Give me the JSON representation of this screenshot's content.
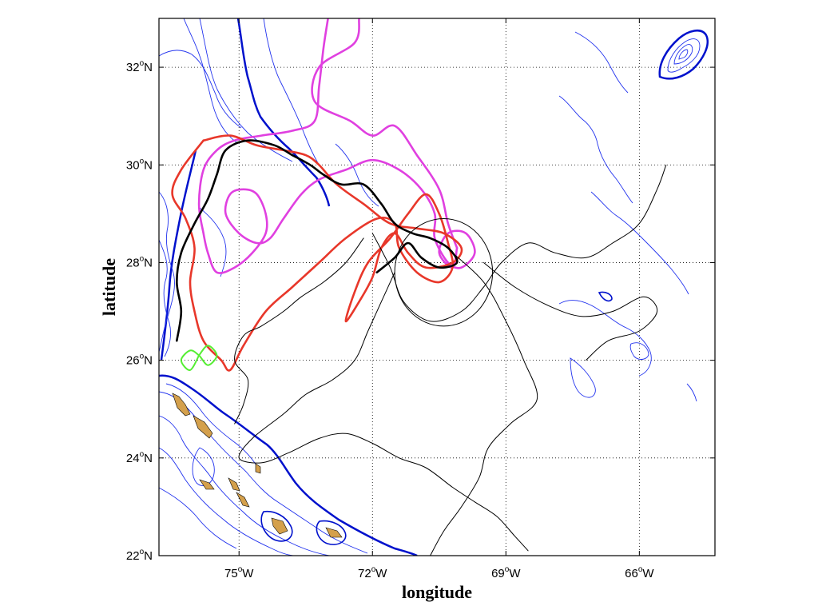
{
  "axes": {
    "xlabel": "longitude",
    "ylabel": "latitude",
    "xlim": [
      -76.8,
      -64.3
    ],
    "ylim": [
      22,
      33
    ],
    "xticks": [
      {
        "value": -75,
        "num": "75",
        "dir": "W"
      },
      {
        "value": -72,
        "num": "72",
        "dir": "W"
      },
      {
        "value": -69,
        "num": "69",
        "dir": "W"
      },
      {
        "value": -66,
        "num": "66",
        "dir": "W"
      }
    ],
    "yticks": [
      {
        "value": 22,
        "num": "22",
        "dir": "N"
      },
      {
        "value": 24,
        "num": "24",
        "dir": "N"
      },
      {
        "value": 26,
        "num": "26",
        "dir": "N"
      },
      {
        "value": 28,
        "num": "28",
        "dir": "N"
      },
      {
        "value": 30,
        "num": "30",
        "dir": "N"
      },
      {
        "value": 32,
        "num": "32",
        "dir": "N"
      }
    ],
    "degree_symbol": "o",
    "grid": true
  },
  "colors": {
    "bathymetry_thin": "#2233ee",
    "bathymetry_thick": "#0011cc",
    "land": "#d4a04c",
    "track_magenta": "#e040e0",
    "track_red": "#e8372a",
    "track_black": "#000000",
    "track_green": "#55ee33"
  },
  "chart_data": {
    "type": "map",
    "layers": [
      {
        "kind": "drifter-track",
        "color": "magenta",
        "points": [
          [
            -73.0,
            33.0
          ],
          [
            -73.1,
            32.4
          ],
          [
            -73.2,
            31.6
          ],
          [
            -73.3,
            30.9
          ],
          [
            -73.8,
            30.7
          ],
          [
            -74.5,
            30.6
          ],
          [
            -75.1,
            30.5
          ],
          [
            -75.5,
            30.3
          ],
          [
            -75.8,
            29.9
          ],
          [
            -75.9,
            29.2
          ],
          [
            -75.8,
            28.6
          ],
          [
            -75.7,
            28.2
          ],
          [
            -75.5,
            27.8
          ],
          [
            -75.1,
            27.9
          ],
          [
            -74.7,
            28.2
          ],
          [
            -74.4,
            28.6
          ],
          [
            -74.4,
            29.0
          ],
          [
            -74.6,
            29.4
          ],
          [
            -74.9,
            29.5
          ],
          [
            -75.2,
            29.4
          ],
          [
            -75.3,
            29.0
          ],
          [
            -75.0,
            28.6
          ],
          [
            -74.6,
            28.4
          ],
          [
            -74.3,
            28.5
          ],
          [
            -74.0,
            28.9
          ],
          [
            -73.6,
            29.4
          ],
          [
            -73.2,
            29.7
          ],
          [
            -72.6,
            29.9
          ],
          [
            -72.0,
            30.1
          ],
          [
            -71.4,
            29.9
          ],
          [
            -70.9,
            29.5
          ],
          [
            -70.6,
            29.0
          ],
          [
            -70.6,
            28.5
          ],
          [
            -70.3,
            28.0
          ],
          [
            -70.0,
            27.9
          ],
          [
            -69.7,
            28.2
          ],
          [
            -69.9,
            28.6
          ],
          [
            -70.3,
            28.6
          ],
          [
            -70.5,
            28.2
          ],
          [
            -70.2,
            27.9
          ],
          [
            -70.1,
            28.3
          ]
        ]
      },
      {
        "kind": "drifter-track",
        "color": "magenta",
        "points": [
          [
            -72.3,
            33.0
          ],
          [
            -72.4,
            32.5
          ],
          [
            -73.2,
            32.0
          ],
          [
            -73.3,
            31.3
          ],
          [
            -72.5,
            30.9
          ],
          [
            -72.0,
            30.6
          ],
          [
            -71.5,
            30.8
          ],
          [
            -71.0,
            30.2
          ],
          [
            -70.5,
            29.5
          ],
          [
            -70.3,
            28.8
          ],
          [
            -70.1,
            28.3
          ]
        ]
      },
      {
        "kind": "drifter-track",
        "color": "red",
        "points": [
          [
            -75.8,
            30.5
          ],
          [
            -75.2,
            30.6
          ],
          [
            -74.6,
            30.4
          ],
          [
            -74.0,
            30.3
          ],
          [
            -73.5,
            30.2
          ],
          [
            -73.2,
            30.0
          ],
          [
            -72.8,
            29.6
          ],
          [
            -72.2,
            29.2
          ],
          [
            -71.6,
            28.8
          ],
          [
            -71.0,
            28.7
          ],
          [
            -70.4,
            28.6
          ],
          [
            -70.0,
            28.3
          ],
          [
            -70.2,
            28.0
          ],
          [
            -70.8,
            27.9
          ],
          [
            -71.2,
            28.2
          ],
          [
            -71.5,
            28.6
          ],
          [
            -71.8,
            28.3
          ],
          [
            -72.0,
            27.7
          ],
          [
            -72.3,
            27.2
          ],
          [
            -72.6,
            26.8
          ],
          [
            -72.4,
            27.4
          ],
          [
            -72.1,
            28.0
          ],
          [
            -71.6,
            28.5
          ],
          [
            -71.2,
            29.0
          ],
          [
            -70.8,
            29.4
          ],
          [
            -70.5,
            29.0
          ],
          [
            -70.3,
            28.4
          ],
          [
            -70.2,
            27.9
          ],
          [
            -70.5,
            27.6
          ],
          [
            -71.0,
            27.8
          ],
          [
            -71.4,
            28.3
          ],
          [
            -71.5,
            28.8
          ],
          [
            -71.9,
            28.9
          ],
          [
            -72.6,
            28.5
          ],
          [
            -73.2,
            28.0
          ],
          [
            -73.8,
            27.5
          ],
          [
            -74.4,
            27.0
          ],
          [
            -74.9,
            26.3
          ],
          [
            -75.2,
            25.8
          ],
          [
            -75.4,
            26.0
          ],
          [
            -75.8,
            26.4
          ],
          [
            -76.0,
            27.0
          ],
          [
            -76.1,
            27.6
          ],
          [
            -76.0,
            28.3
          ],
          [
            -76.2,
            28.9
          ],
          [
            -76.5,
            29.4
          ],
          [
            -76.3,
            29.9
          ],
          [
            -75.8,
            30.5
          ]
        ]
      },
      {
        "kind": "drifter-track",
        "color": "black-thick",
        "points": [
          [
            -76.4,
            26.4
          ],
          [
            -76.3,
            27.0
          ],
          [
            -76.4,
            27.6
          ],
          [
            -76.3,
            28.2
          ],
          [
            -76.0,
            28.8
          ],
          [
            -75.7,
            29.3
          ],
          [
            -75.5,
            29.8
          ],
          [
            -75.3,
            30.3
          ],
          [
            -74.8,
            30.5
          ],
          [
            -74.2,
            30.4
          ],
          [
            -73.8,
            30.2
          ],
          [
            -73.4,
            30.0
          ],
          [
            -73.1,
            29.8
          ],
          [
            -72.7,
            29.6
          ],
          [
            -72.2,
            29.6
          ],
          [
            -71.8,
            29.2
          ],
          [
            -71.5,
            28.8
          ],
          [
            -71.1,
            28.6
          ],
          [
            -70.7,
            28.5
          ],
          [
            -70.3,
            28.3
          ],
          [
            -70.1,
            28.0
          ],
          [
            -70.5,
            27.9
          ],
          [
            -70.9,
            28.1
          ],
          [
            -71.2,
            28.4
          ],
          [
            -71.5,
            28.1
          ],
          [
            -71.9,
            27.8
          ]
        ]
      },
      {
        "kind": "drifter-track",
        "color": "black",
        "points": [
          [
            -72.0,
            28.6
          ],
          [
            -71.6,
            27.9
          ],
          [
            -71.3,
            27.2
          ],
          [
            -70.7,
            26.8
          ],
          [
            -70.0,
            27.0
          ],
          [
            -69.5,
            27.5
          ],
          [
            -69.1,
            28.0
          ],
          [
            -68.5,
            28.4
          ],
          [
            -67.9,
            28.2
          ],
          [
            -67.2,
            28.1
          ],
          [
            -66.6,
            28.4
          ],
          [
            -66.0,
            28.8
          ],
          [
            -65.6,
            29.5
          ],
          [
            -65.4,
            30.0
          ]
        ]
      },
      {
        "kind": "drifter-track",
        "color": "black",
        "points": [
          [
            -71.5,
            27.8
          ],
          [
            -71.8,
            27.2
          ],
          [
            -72.1,
            26.6
          ],
          [
            -72.4,
            26.0
          ],
          [
            -72.9,
            25.6
          ],
          [
            -73.5,
            25.3
          ],
          [
            -74.0,
            24.9
          ],
          [
            -74.7,
            24.4
          ],
          [
            -75.0,
            24.0
          ],
          [
            -74.5,
            23.9
          ],
          [
            -73.9,
            24.1
          ],
          [
            -73.2,
            24.4
          ],
          [
            -72.6,
            24.5
          ],
          [
            -72.0,
            24.3
          ],
          [
            -71.4,
            24.0
          ],
          [
            -70.8,
            23.8
          ],
          [
            -70.2,
            23.4
          ],
          [
            -69.7,
            23.1
          ],
          [
            -69.2,
            22.8
          ],
          [
            -68.8,
            22.4
          ],
          [
            -68.5,
            22.1
          ]
        ]
      },
      {
        "kind": "drifter-track",
        "color": "black",
        "points": [
          [
            -70.2,
            28.2
          ],
          [
            -69.5,
            27.6
          ],
          [
            -69.0,
            26.8
          ],
          [
            -68.6,
            26.0
          ],
          [
            -68.3,
            25.2
          ],
          [
            -68.9,
            24.7
          ],
          [
            -69.4,
            24.2
          ],
          [
            -69.6,
            23.6
          ],
          [
            -70.0,
            23.0
          ],
          [
            -70.4,
            22.5
          ],
          [
            -70.7,
            22.0
          ]
        ]
      },
      {
        "kind": "drifter-track",
        "color": "black",
        "points": [
          [
            -72.2,
            28.5
          ],
          [
            -72.6,
            28.0
          ],
          [
            -73.1,
            27.6
          ],
          [
            -73.6,
            27.3
          ],
          [
            -74.0,
            27.0
          ],
          [
            -74.5,
            26.7
          ],
          [
            -74.9,
            26.5
          ],
          [
            -75.1,
            26.0
          ],
          [
            -74.8,
            25.6
          ],
          [
            -74.9,
            25.1
          ],
          [
            -75.1,
            24.7
          ]
        ]
      },
      {
        "kind": "drifter-track",
        "color": "black",
        "points": [
          [
            -69.5,
            28.0
          ],
          [
            -68.8,
            27.5
          ],
          [
            -68.0,
            27.1
          ],
          [
            -67.3,
            26.9
          ],
          [
            -66.6,
            27.0
          ],
          [
            -65.9,
            27.3
          ],
          [
            -65.6,
            27.0
          ],
          [
            -66.0,
            26.6
          ],
          [
            -66.7,
            26.4
          ],
          [
            -67.2,
            26.0
          ]
        ]
      },
      {
        "kind": "drifter-track",
        "color": "green",
        "points": [
          [
            -75.9,
            26.1
          ],
          [
            -75.7,
            26.3
          ],
          [
            -75.5,
            26.1
          ],
          [
            -75.7,
            25.9
          ],
          [
            -75.9,
            26.1
          ],
          [
            -76.1,
            26.2
          ],
          [
            -76.3,
            26.0
          ],
          [
            -76.1,
            25.8
          ],
          [
            -75.9,
            26.1
          ]
        ]
      },
      {
        "kind": "drifter-loop",
        "color": "black",
        "center": [
          -70.4,
          27.8
        ],
        "radius_deg": 1.1
      }
    ]
  }
}
